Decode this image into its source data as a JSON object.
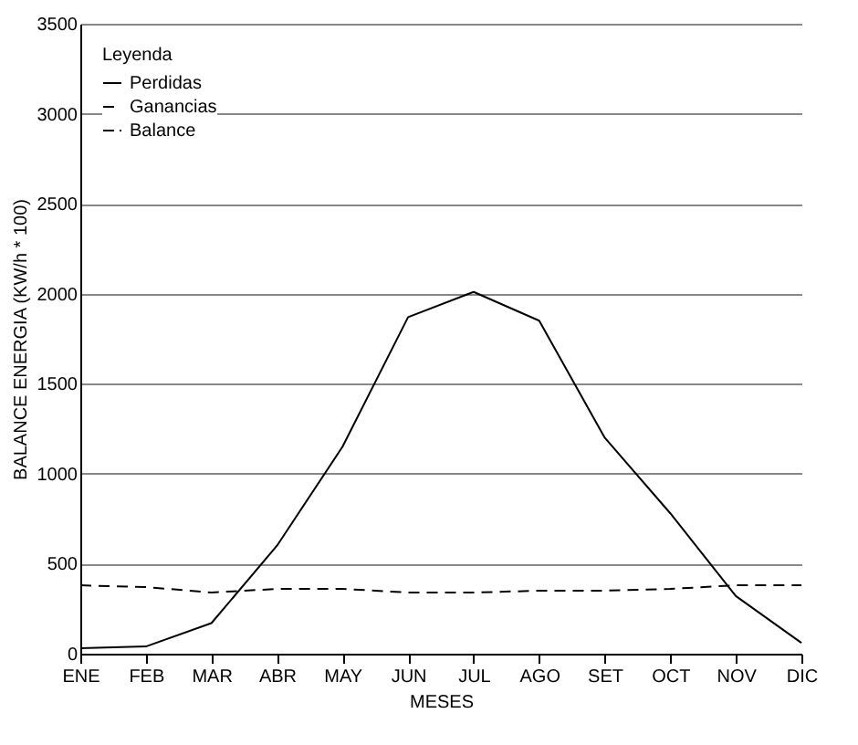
{
  "chart_data": {
    "type": "line",
    "xlabel": "MESES",
    "ylabel": "BALANCE ENERGIA (KW/h * 100)",
    "legend_title": "Leyenda",
    "categories": [
      "ENE",
      "FEB",
      "MAR",
      "ABR",
      "MAY",
      "JUN",
      "JUL",
      "AGO",
      "SET",
      "OCT",
      "NOV",
      "DIC"
    ],
    "series": [
      {
        "name": "Perdidas",
        "color": "#000000",
        "line_style": "solid",
        "values": [
          30,
          40,
          170,
          600,
          1150,
          1870,
          2010,
          1850,
          1200,
          780,
          320,
          60
        ]
      },
      {
        "name": "Ganancias",
        "color": "#000000",
        "line_style": "dashed",
        "values": [
          380,
          370,
          340,
          360,
          360,
          340,
          340,
          350,
          350,
          360,
          380,
          380
        ]
      },
      {
        "name": "Balance",
        "color": "#000000",
        "line_style": "dashdot",
        "values": [
          null,
          null,
          null,
          null,
          null,
          null,
          null,
          null,
          null,
          null,
          null,
          null
        ]
      }
    ],
    "ylim": [
      0,
      3500
    ],
    "yticks": [
      0,
      500,
      1000,
      1500,
      2000,
      2500,
      3000,
      3500
    ],
    "grid": "y",
    "legend": "top left",
    "marker": "none"
  }
}
